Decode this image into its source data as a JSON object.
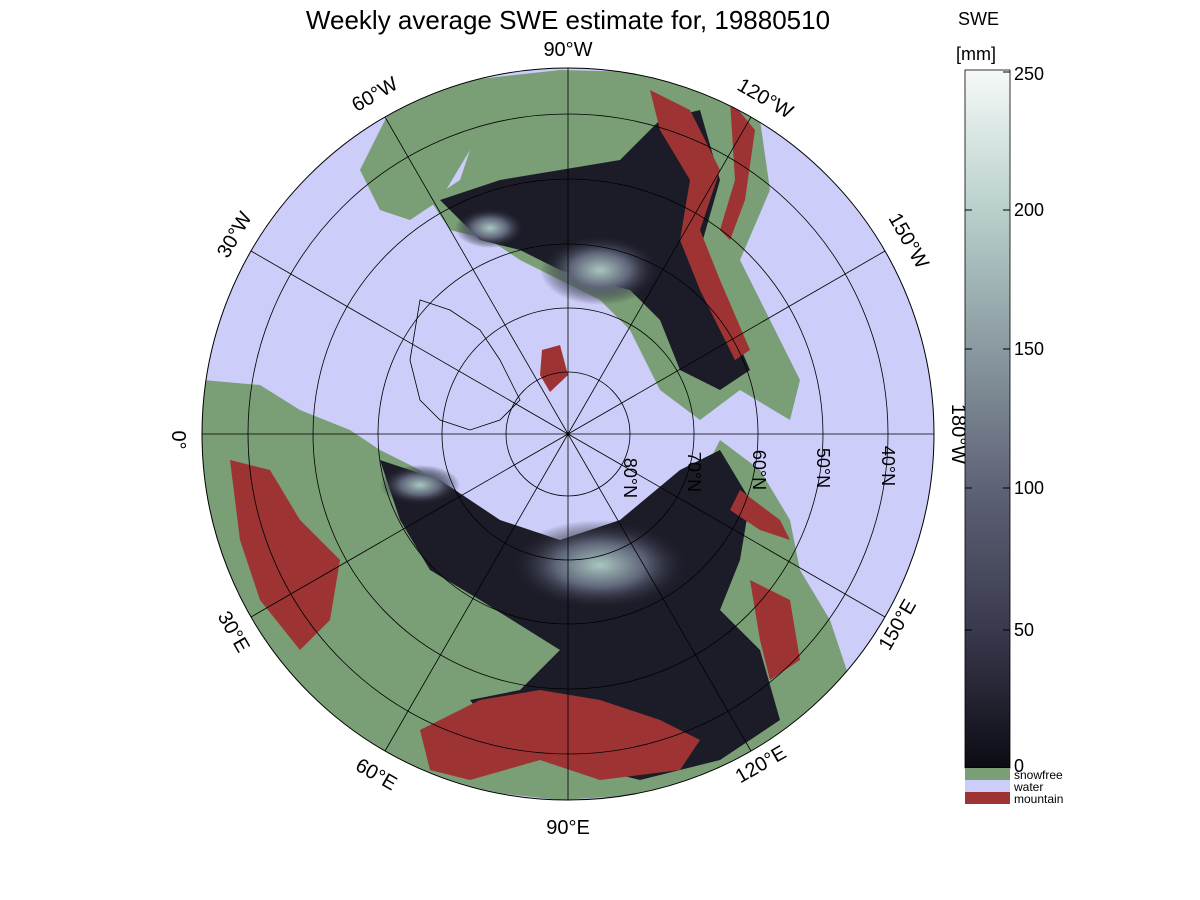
{
  "title": "Weekly average SWE estimate for, 19880510",
  "longitude_labels": [
    {
      "text": "90°W"
    },
    {
      "text": "120°W"
    },
    {
      "text": "150°W"
    },
    {
      "text": "180°W"
    },
    {
      "text": "150°E"
    },
    {
      "text": "120°E"
    },
    {
      "text": "90°E"
    },
    {
      "text": "60°E"
    },
    {
      "text": "30°E"
    },
    {
      "text": "0°"
    },
    {
      "text": "30°W"
    },
    {
      "text": "60°W"
    }
  ],
  "latitude_labels": [
    "80°N",
    "70°N",
    "60°N",
    "50°N",
    "40°N"
  ],
  "colorbar": {
    "title_line1": "SWE",
    "title_line2": "[mm]",
    "ticks": [
      "0",
      "50",
      "100",
      "150",
      "200",
      "250"
    ],
    "range": [
      0,
      250
    ],
    "legend": [
      {
        "label": "snowfree",
        "color": "#7a9e76"
      },
      {
        "label": "water",
        "color": "#cccdf9"
      },
      {
        "label": "mountain",
        "color": "#9e3333"
      }
    ]
  },
  "colors": {
    "water": "#cccdf9",
    "snowfree": "#7a9e76",
    "mountain": "#9e3333",
    "swe_low": "#0c0c14",
    "swe_high": "#f6f9f8"
  }
}
